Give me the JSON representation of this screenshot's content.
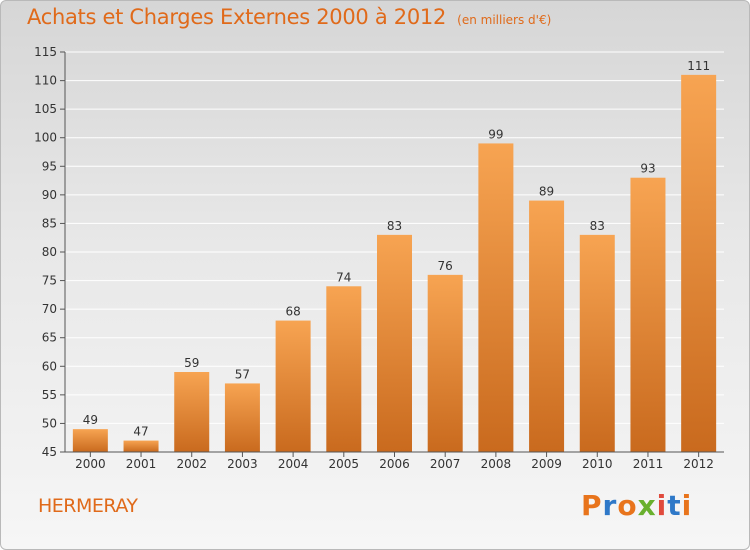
{
  "header": {
    "title": "Achats et Charges Externes 2000 à 2012",
    "subtitle": "(en milliers d'€)"
  },
  "footer": {
    "town": "HERMERAY",
    "brand": "Proxiti"
  },
  "colors": {
    "title": "#e06a1a",
    "bar_light": "#f7a452",
    "bar_dark": "#c96a1e",
    "grid": "#ffffff",
    "brand_letters": [
      "#e8741c",
      "#2e78c8",
      "#e8741c",
      "#69b02e",
      "#e04a3c",
      "#2e78c8",
      "#e8741c"
    ]
  },
  "chart_data": {
    "type": "bar",
    "categories": [
      "2000",
      "2001",
      "2002",
      "2003",
      "2004",
      "2005",
      "2006",
      "2007",
      "2008",
      "2009",
      "2010",
      "2011",
      "2012"
    ],
    "values": [
      49,
      47,
      59,
      57,
      68,
      74,
      83,
      76,
      99,
      89,
      83,
      93,
      111
    ],
    "title": "Achats et Charges Externes 2000 à 2012",
    "ylim": [
      45,
      115
    ],
    "yticks": [
      45,
      50,
      55,
      60,
      65,
      70,
      75,
      80,
      85,
      90,
      95,
      100,
      105,
      110,
      115
    ],
    "grid": true
  }
}
